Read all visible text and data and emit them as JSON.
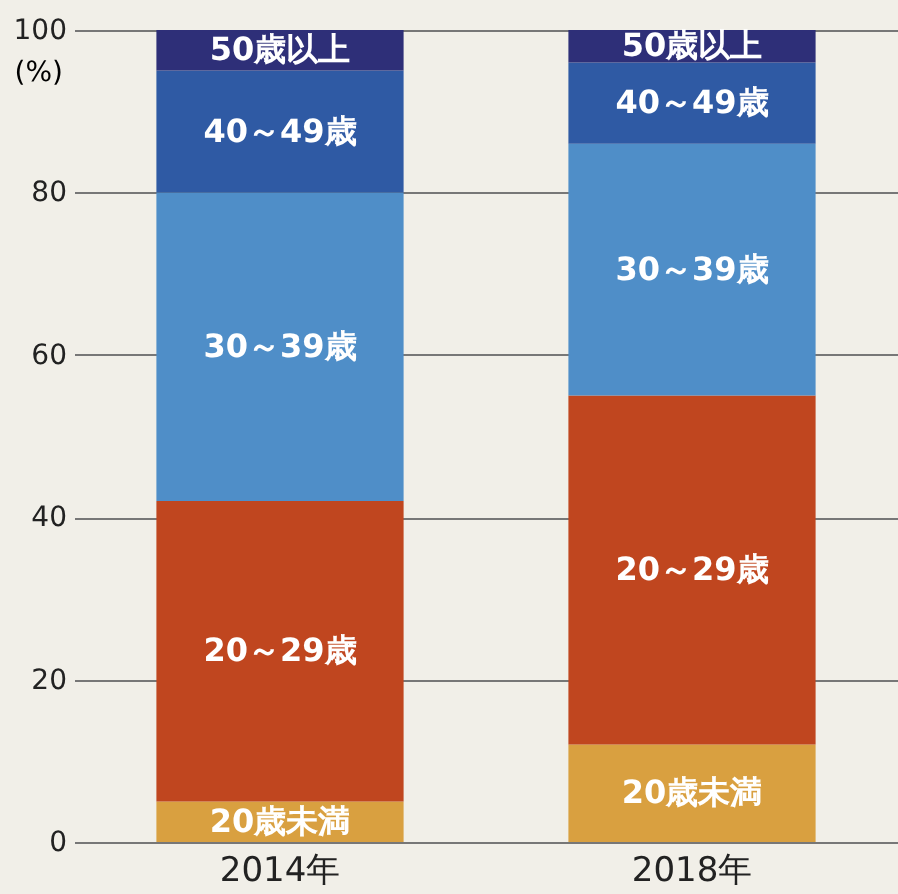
{
  "chart_data": {
    "type": "bar",
    "stacked": true,
    "ylabel": "(%)",
    "categories": [
      "2014年",
      "2018年"
    ],
    "series": [
      {
        "name": "20歳未満",
        "color": "#d9a040",
        "values": [
          5,
          12
        ]
      },
      {
        "name": "20～29歳",
        "color": "#c0461f",
        "values": [
          37,
          43
        ]
      },
      {
        "name": "30～39歳",
        "color": "#4f8ec8",
        "values": [
          38,
          31
        ]
      },
      {
        "name": "40～49歳",
        "color": "#2f5aa4",
        "values": [
          15,
          10
        ]
      },
      {
        "name": "50歳以上",
        "color": "#2e2f78",
        "values": [
          5,
          4
        ]
      }
    ],
    "ylim": [
      0,
      100
    ],
    "yticks": [
      0,
      20,
      40,
      60,
      80,
      100
    ],
    "grid": "y"
  }
}
